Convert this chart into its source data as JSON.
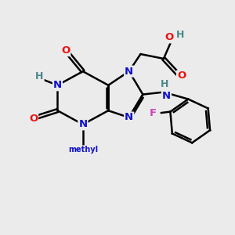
{
  "background_color": "#ebebeb",
  "bond_color": "#000000",
  "atom_colors": {
    "N": "#1010cc",
    "O": "#ee1111",
    "H": "#4a8888",
    "F": "#cc44bb",
    "C": "#000000"
  },
  "figsize": [
    3.0,
    3.0
  ],
  "dpi": 100
}
